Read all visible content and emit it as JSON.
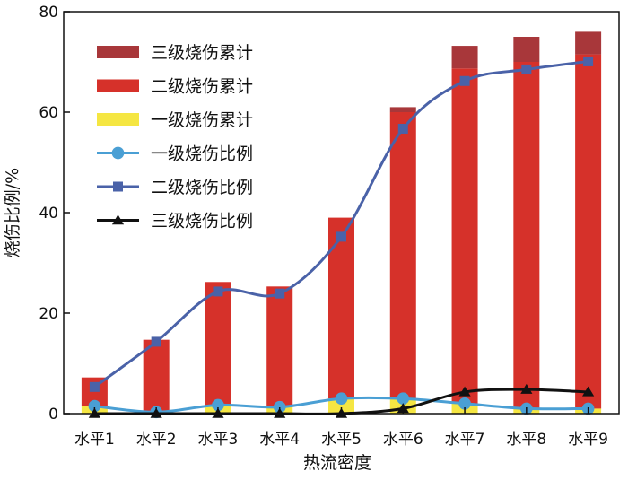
{
  "chart_data": {
    "type": "bar",
    "categories": [
      "水平1",
      "水平2",
      "水平3",
      "水平4",
      "水平5",
      "水平6",
      "水平7",
      "水平8",
      "水平9"
    ],
    "xlabel": "热流密度",
    "ylabel": "烧伤比例/%",
    "ylim": [
      0,
      80
    ],
    "yticks": [
      0,
      20,
      40,
      60,
      80
    ],
    "stacked": true,
    "grid": false,
    "legend_position": "top-left",
    "bar_series": [
      {
        "name": "一级烧伤累计",
        "color": "#f5e642",
        "values": [
          1.5,
          0.3,
          1.7,
          1.3,
          3.0,
          3.0,
          2.0,
          1.0,
          1.0
        ]
      },
      {
        "name": "二级烧伤累计",
        "color": "#d6312a",
        "values": [
          5.7,
          14.4,
          24.5,
          24.0,
          36.0,
          57.0,
          66.7,
          69.0,
          70.5
        ]
      },
      {
        "name": "三级烧伤累计",
        "color": "#a8373a",
        "values": [
          0,
          0,
          0,
          0,
          0,
          1.0,
          4.5,
          5.0,
          4.5
        ]
      }
    ],
    "line_series": [
      {
        "name": "一级烧伤比例",
        "color": "#4a9fd4",
        "marker": "circle",
        "values": [
          1.5,
          0.3,
          1.7,
          1.3,
          3.0,
          3.0,
          2.0,
          1.0,
          1.0
        ]
      },
      {
        "name": "二级烧伤比例",
        "color": "#4a62a8",
        "marker": "square",
        "values": [
          5.3,
          14.3,
          24.3,
          23.9,
          35.2,
          56.7,
          66.2,
          68.5,
          70.1
        ]
      },
      {
        "name": "三级烧伤比例",
        "color": "#111111",
        "marker": "triangle",
        "values": [
          0,
          0,
          0,
          0,
          0,
          1.0,
          4.3,
          4.8,
          4.3
        ]
      }
    ],
    "legend_order": [
      {
        "type": "bar",
        "ref": 2
      },
      {
        "type": "bar",
        "ref": 1
      },
      {
        "type": "bar",
        "ref": 0
      },
      {
        "type": "line",
        "ref": 0
      },
      {
        "type": "line",
        "ref": 1
      },
      {
        "type": "line",
        "ref": 2
      }
    ]
  }
}
